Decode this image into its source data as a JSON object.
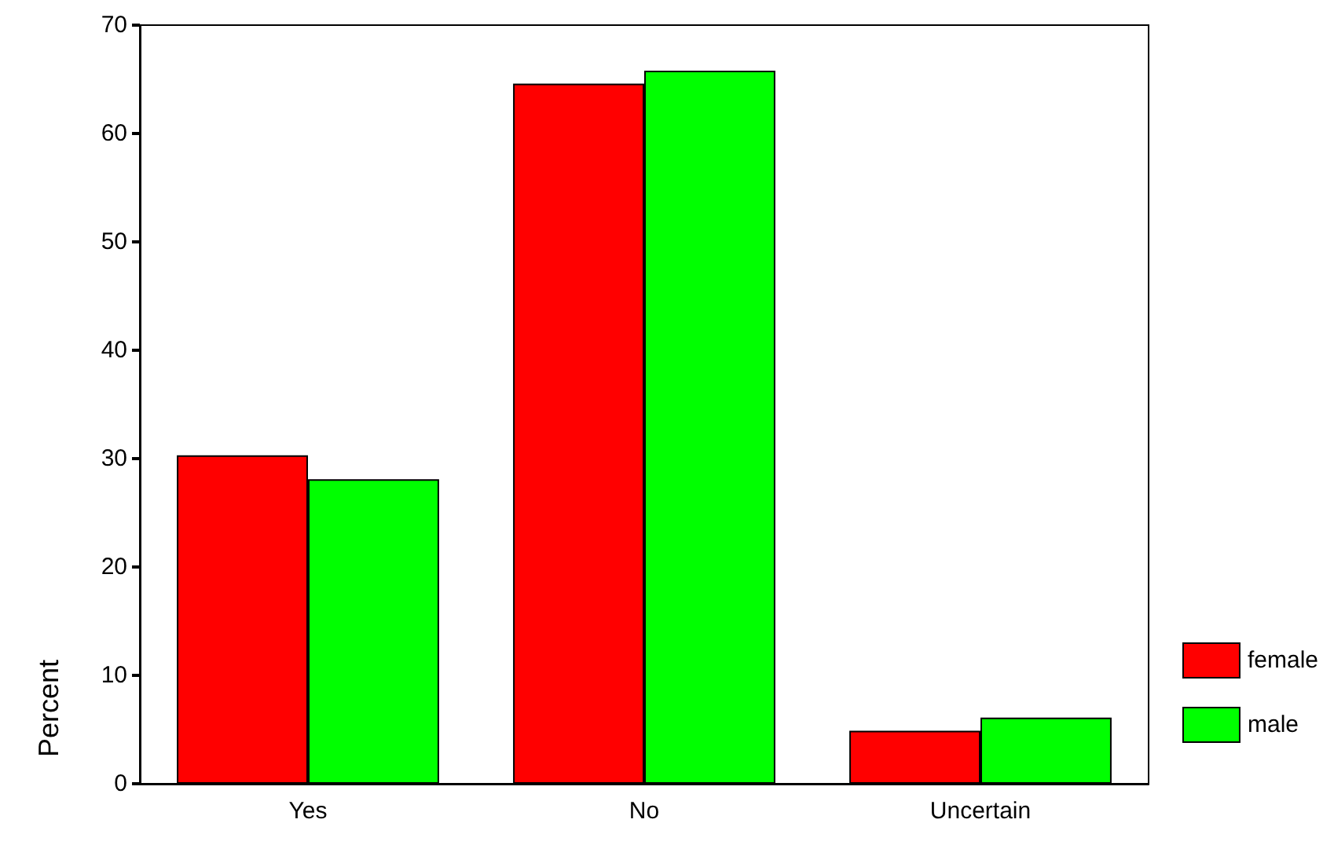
{
  "chart_data": {
    "type": "bar",
    "ylabel": "Percent",
    "categories": [
      "Yes",
      "No",
      "Uncertain"
    ],
    "series": [
      {
        "name": "female",
        "color": "#ff0000",
        "values": [
          30.3,
          64.6,
          4.9
        ]
      },
      {
        "name": "male",
        "color": "#00ff00",
        "values": [
          28.1,
          65.8,
          6.1
        ]
      }
    ],
    "ylim": [
      0,
      70
    ],
    "yticks": [
      0,
      10,
      20,
      30,
      40,
      50,
      60,
      70
    ],
    "grid": false,
    "legend": "bottom right"
  }
}
